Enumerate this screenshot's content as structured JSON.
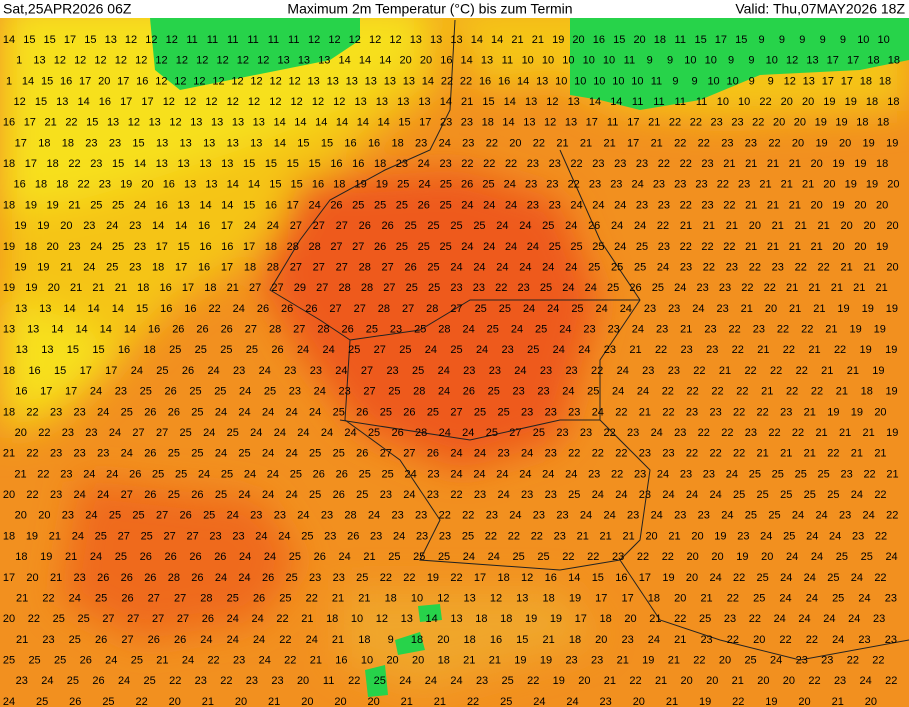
{
  "header": {
    "left": "Sat,25APR2026 06Z",
    "title": "Maximum 2m Temperatur (°C) bis zum Termin",
    "right": "Valid: Thu,07MAY2026 18Z"
  },
  "grid": {
    "rows": [
      [
        14,
        15,
        15,
        17,
        15,
        13,
        12,
        12,
        12,
        11,
        11,
        11,
        11,
        11,
        11,
        12,
        12,
        12,
        12,
        12,
        13,
        13,
        13,
        14,
        14,
        21,
        21,
        19,
        20,
        16,
        15,
        20,
        18,
        11,
        15,
        17,
        15,
        9,
        9,
        9,
        9,
        9,
        10,
        10
      ],
      [
        1,
        13,
        12,
        12,
        12,
        12,
        12,
        12,
        12,
        12,
        12,
        12,
        12,
        13,
        13,
        13,
        14,
        14,
        14,
        20,
        20,
        16,
        14,
        13,
        11,
        10,
        10,
        10,
        10,
        10,
        11,
        9,
        9,
        10,
        10,
        9,
        9,
        10,
        12,
        13,
        17,
        17,
        18,
        18
      ],
      [
        1,
        14,
        15,
        16,
        17,
        20,
        17,
        16,
        12,
        12,
        12,
        12,
        12,
        12,
        12,
        12,
        13,
        13,
        13,
        13,
        13,
        13,
        14,
        22,
        22,
        16,
        16,
        14,
        13,
        10,
        10,
        10,
        10,
        10,
        11,
        9,
        9,
        10,
        10,
        9,
        9,
        12,
        13,
        17,
        17,
        18,
        18
      ],
      [
        12,
        15,
        13,
        14,
        16,
        17,
        17,
        12,
        12,
        12,
        12,
        12,
        12,
        12,
        12,
        12,
        13,
        13,
        13,
        13,
        14,
        21,
        15,
        14,
        13,
        12,
        13,
        14,
        14,
        11,
        11,
        11,
        11,
        10,
        10,
        22,
        20,
        20,
        19,
        19,
        18,
        18
      ],
      [
        16,
        17,
        21,
        22,
        15,
        13,
        12,
        13,
        12,
        13,
        13,
        13,
        13,
        14,
        14,
        14,
        14,
        14,
        14,
        15,
        17,
        23,
        23,
        18,
        14,
        13,
        12,
        13,
        17,
        11,
        17,
        21,
        22,
        22,
        23,
        23,
        22,
        20,
        20,
        19,
        19,
        18,
        18
      ],
      [
        17,
        18,
        18,
        23,
        23,
        15,
        13,
        13,
        13,
        13,
        13,
        14,
        15,
        15,
        16,
        16,
        18,
        23,
        24,
        23,
        22,
        20,
        22,
        21,
        21,
        21,
        17,
        21,
        22,
        22,
        23,
        23,
        22,
        20,
        19,
        20,
        19,
        19
      ],
      [
        18,
        17,
        18,
        22,
        23,
        15,
        14,
        13,
        13,
        13,
        13,
        15,
        15,
        15,
        15,
        16,
        16,
        18,
        23,
        24,
        23,
        22,
        22,
        22,
        23,
        23,
        22,
        23,
        23,
        23,
        22,
        22,
        23,
        21,
        21,
        21,
        21,
        20,
        19,
        19,
        18
      ],
      [
        16,
        18,
        18,
        22,
        23,
        19,
        20,
        16,
        13,
        13,
        14,
        14,
        15,
        15,
        16,
        18,
        19,
        19,
        25,
        24,
        25,
        26,
        25,
        24,
        23,
        23,
        22,
        23,
        23,
        24,
        23,
        23,
        23,
        22,
        23,
        21,
        21,
        21,
        20,
        19,
        19,
        20
      ],
      [
        18,
        19,
        19,
        21,
        25,
        25,
        24,
        16,
        13,
        14,
        14,
        15,
        16,
        17,
        24,
        26,
        25,
        25,
        25,
        26,
        25,
        24,
        24,
        24,
        23,
        23,
        24,
        24,
        24,
        23,
        23,
        22,
        23,
        22,
        21,
        21,
        21,
        20,
        19,
        20,
        20
      ],
      [
        19,
        19,
        20,
        23,
        24,
        23,
        14,
        14,
        16,
        17,
        24,
        24,
        27,
        27,
        27,
        26,
        26,
        25,
        25,
        25,
        25,
        24,
        24,
        25,
        24,
        26,
        24,
        24,
        22,
        21,
        21,
        21,
        20,
        21,
        21,
        21,
        20,
        20,
        20
      ],
      [
        19,
        18,
        20,
        23,
        24,
        25,
        23,
        17,
        15,
        16,
        16,
        17,
        18,
        28,
        28,
        27,
        27,
        26,
        25,
        25,
        25,
        24,
        24,
        24,
        24,
        25,
        25,
        25,
        24,
        25,
        23,
        22,
        22,
        22,
        21,
        21,
        21,
        21,
        20,
        20,
        19
      ],
      [
        19,
        19,
        21,
        24,
        25,
        23,
        18,
        17,
        16,
        17,
        18,
        28,
        27,
        27,
        27,
        28,
        27,
        26,
        25,
        24,
        24,
        24,
        24,
        24,
        24,
        25,
        25,
        25,
        24,
        23,
        22,
        23,
        22,
        23,
        22,
        22,
        21,
        21,
        20
      ],
      [
        19,
        19,
        20,
        21,
        21,
        21,
        18,
        16,
        17,
        18,
        21,
        27,
        27,
        29,
        27,
        28,
        28,
        27,
        25,
        25,
        23,
        23,
        22,
        23,
        25,
        24,
        24,
        25,
        26,
        25,
        24,
        23,
        23,
        22,
        22,
        21,
        21,
        21,
        21,
        21
      ],
      [
        13,
        13,
        14,
        14,
        14,
        15,
        16,
        16,
        22,
        24,
        26,
        26,
        26,
        27,
        27,
        28,
        27,
        28,
        27,
        25,
        25,
        24,
        24,
        25,
        24,
        24,
        23,
        23,
        24,
        23,
        21,
        20,
        21,
        21,
        19,
        19,
        19
      ],
      [
        13,
        13,
        14,
        14,
        14,
        14,
        16,
        26,
        26,
        26,
        27,
        28,
        27,
        28,
        26,
        25,
        23,
        25,
        28,
        24,
        25,
        24,
        25,
        24,
        23,
        23,
        24,
        23,
        21,
        23,
        22,
        23,
        22,
        22,
        21,
        19,
        19
      ],
      [
        13,
        13,
        15,
        15,
        16,
        18,
        25,
        25,
        25,
        25,
        26,
        24,
        24,
        25,
        27,
        25,
        24,
        25,
        24,
        23,
        25,
        24,
        24,
        23,
        21,
        22,
        23,
        23,
        22,
        21,
        22,
        21,
        22,
        19,
        19
      ],
      [
        18,
        16,
        15,
        17,
        17,
        24,
        25,
        26,
        24,
        23,
        24,
        23,
        23,
        24,
        27,
        23,
        25,
        24,
        23,
        23,
        24,
        23,
        23,
        22,
        24,
        23,
        23,
        22,
        21,
        22,
        22,
        22,
        21,
        21,
        19
      ],
      [
        16,
        17,
        17,
        24,
        23,
        25,
        26,
        25,
        25,
        24,
        25,
        23,
        24,
        23,
        27,
        25,
        28,
        24,
        26,
        25,
        23,
        23,
        24,
        25,
        24,
        24,
        22,
        22,
        22,
        22,
        21,
        22,
        22,
        21,
        18,
        19
      ],
      [
        18,
        22,
        23,
        23,
        24,
        25,
        26,
        26,
        25,
        24,
        24,
        24,
        24,
        24,
        25,
        26,
        25,
        26,
        25,
        27,
        25,
        25,
        23,
        23,
        23,
        24,
        22,
        21,
        22,
        23,
        23,
        22,
        22,
        23,
        21,
        19,
        19,
        20
      ],
      [
        20,
        22,
        23,
        23,
        24,
        27,
        27,
        25,
        24,
        25,
        24,
        24,
        24,
        24,
        24,
        25,
        26,
        28,
        24,
        24,
        25,
        27,
        25,
        23,
        23,
        22,
        23,
        24,
        23,
        22,
        22,
        23,
        22,
        22,
        21,
        21,
        21,
        19
      ],
      [
        21,
        22,
        23,
        23,
        23,
        24,
        26,
        25,
        25,
        24,
        25,
        24,
        24,
        25,
        25,
        26,
        27,
        27,
        26,
        24,
        24,
        23,
        24,
        23,
        22,
        22,
        22,
        23,
        23,
        22,
        22,
        22,
        21,
        21,
        21,
        22,
        21,
        21
      ],
      [
        21,
        22,
        23,
        24,
        24,
        26,
        25,
        25,
        24,
        25,
        24,
        24,
        25,
        26,
        26,
        25,
        25,
        24,
        23,
        24,
        24,
        24,
        24,
        24,
        24,
        23,
        22,
        23,
        24,
        23,
        23,
        24,
        25,
        25,
        25,
        25,
        23,
        22,
        21
      ],
      [
        20,
        22,
        23,
        24,
        24,
        27,
        26,
        25,
        26,
        25,
        24,
        24,
        24,
        25,
        26,
        25,
        23,
        24,
        23,
        22,
        23,
        24,
        23,
        23,
        25,
        24,
        24,
        23,
        24,
        24,
        24,
        25,
        25,
        25,
        25,
        25,
        24,
        22
      ],
      [
        20,
        20,
        23,
        24,
        25,
        25,
        27,
        26,
        25,
        24,
        23,
        23,
        24,
        23,
        28,
        24,
        23,
        23,
        22,
        22,
        23,
        24,
        23,
        23,
        24,
        24,
        23,
        24,
        23,
        23,
        24,
        25,
        25,
        24,
        24,
        23,
        24,
        22
      ],
      [
        18,
        19,
        21,
        24,
        25,
        27,
        25,
        27,
        27,
        23,
        23,
        24,
        24,
        25,
        23,
        26,
        23,
        24,
        23,
        23,
        25,
        22,
        22,
        22,
        23,
        21,
        21,
        21,
        20,
        21,
        20,
        19,
        23,
        24,
        25,
        24,
        24,
        23,
        22
      ],
      [
        18,
        19,
        21,
        24,
        25,
        26,
        26,
        26,
        26,
        24,
        24,
        25,
        26,
        24,
        21,
        25,
        25,
        25,
        24,
        24,
        25,
        25,
        22,
        22,
        23,
        22,
        22,
        20,
        20,
        19,
        20,
        24,
        24,
        25,
        25,
        24
      ],
      [
        17,
        20,
        21,
        23,
        26,
        26,
        26,
        28,
        26,
        24,
        24,
        26,
        25,
        23,
        23,
        25,
        22,
        22,
        19,
        22,
        17,
        18,
        12,
        16,
        14,
        15,
        16,
        17,
        19,
        20,
        24,
        22,
        25,
        24,
        24,
        25,
        24,
        22
      ],
      [
        21,
        22,
        24,
        25,
        26,
        27,
        27,
        28,
        25,
        26,
        25,
        22,
        21,
        21,
        18,
        10,
        12,
        13,
        12,
        13,
        18,
        19,
        17,
        17,
        18,
        20,
        21,
        22,
        25,
        24,
        24,
        25,
        24,
        23
      ],
      [
        20,
        22,
        25,
        25,
        27,
        27,
        27,
        27,
        26,
        24,
        24,
        22,
        21,
        18,
        10,
        12,
        13,
        14,
        13,
        18,
        18,
        19,
        19,
        17,
        18,
        20,
        21,
        22,
        25,
        23,
        22,
        24,
        24,
        24,
        24,
        23
      ],
      [
        21,
        23,
        25,
        26,
        27,
        26,
        26,
        24,
        24,
        24,
        22,
        24,
        21,
        18,
        9,
        18,
        20,
        18,
        16,
        15,
        21,
        18,
        20,
        23,
        24,
        21,
        23,
        22,
        20,
        22,
        22,
        24,
        23,
        23
      ],
      [
        25,
        25,
        25,
        26,
        24,
        25,
        21,
        24,
        22,
        23,
        24,
        22,
        21,
        16,
        10,
        20,
        20,
        18,
        21,
        21,
        19,
        19,
        23,
        23,
        21,
        19,
        21,
        22,
        20,
        25,
        24,
        23,
        23,
        22,
        22
      ],
      [
        23,
        24,
        25,
        26,
        24,
        25,
        22,
        23,
        22,
        23,
        23,
        20,
        11,
        22,
        25,
        24,
        24,
        24,
        23,
        25,
        22,
        19,
        20,
        21,
        22,
        21,
        20,
        20,
        21,
        20,
        20,
        22,
        23,
        24,
        22
      ],
      [
        24,
        25,
        26,
        25,
        22,
        20,
        21,
        20,
        21,
        20,
        20,
        20,
        21,
        21,
        22,
        25,
        24,
        24,
        23,
        20,
        21,
        19,
        22,
        19,
        20,
        21,
        20
      ]
    ]
  }
}
